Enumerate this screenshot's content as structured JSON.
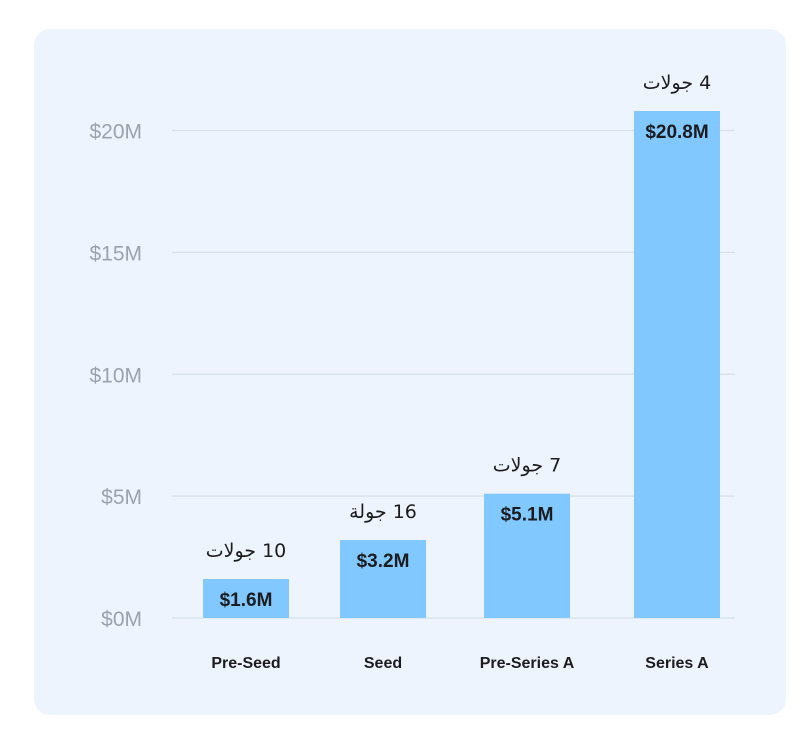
{
  "chart_data": {
    "type": "bar",
    "categories": [
      "Pre-Seed",
      "Seed",
      "Pre-Series A",
      "Series A"
    ],
    "values": [
      1.6,
      3.2,
      5.1,
      20.8
    ],
    "value_labels": [
      "$1.6M",
      "$3.2M",
      "$5.1M",
      "$20.8M"
    ],
    "round_counts": [
      "10 جولات",
      "16 جولة",
      "7 جولات",
      "4 جولات"
    ],
    "yticks": [
      0,
      5,
      10,
      15,
      20
    ],
    "ytick_labels": [
      "$0M",
      "$5M",
      "$10M",
      "$15M",
      "$20M"
    ],
    "ylim": [
      0,
      20.8
    ],
    "grid": true,
    "colors": {
      "bar": "#80c8ff",
      "card": "#eef4fd",
      "grid": "#d9e3ee",
      "tick_text": "#9aa3ad",
      "label_text": "#1c1c1e"
    }
  }
}
